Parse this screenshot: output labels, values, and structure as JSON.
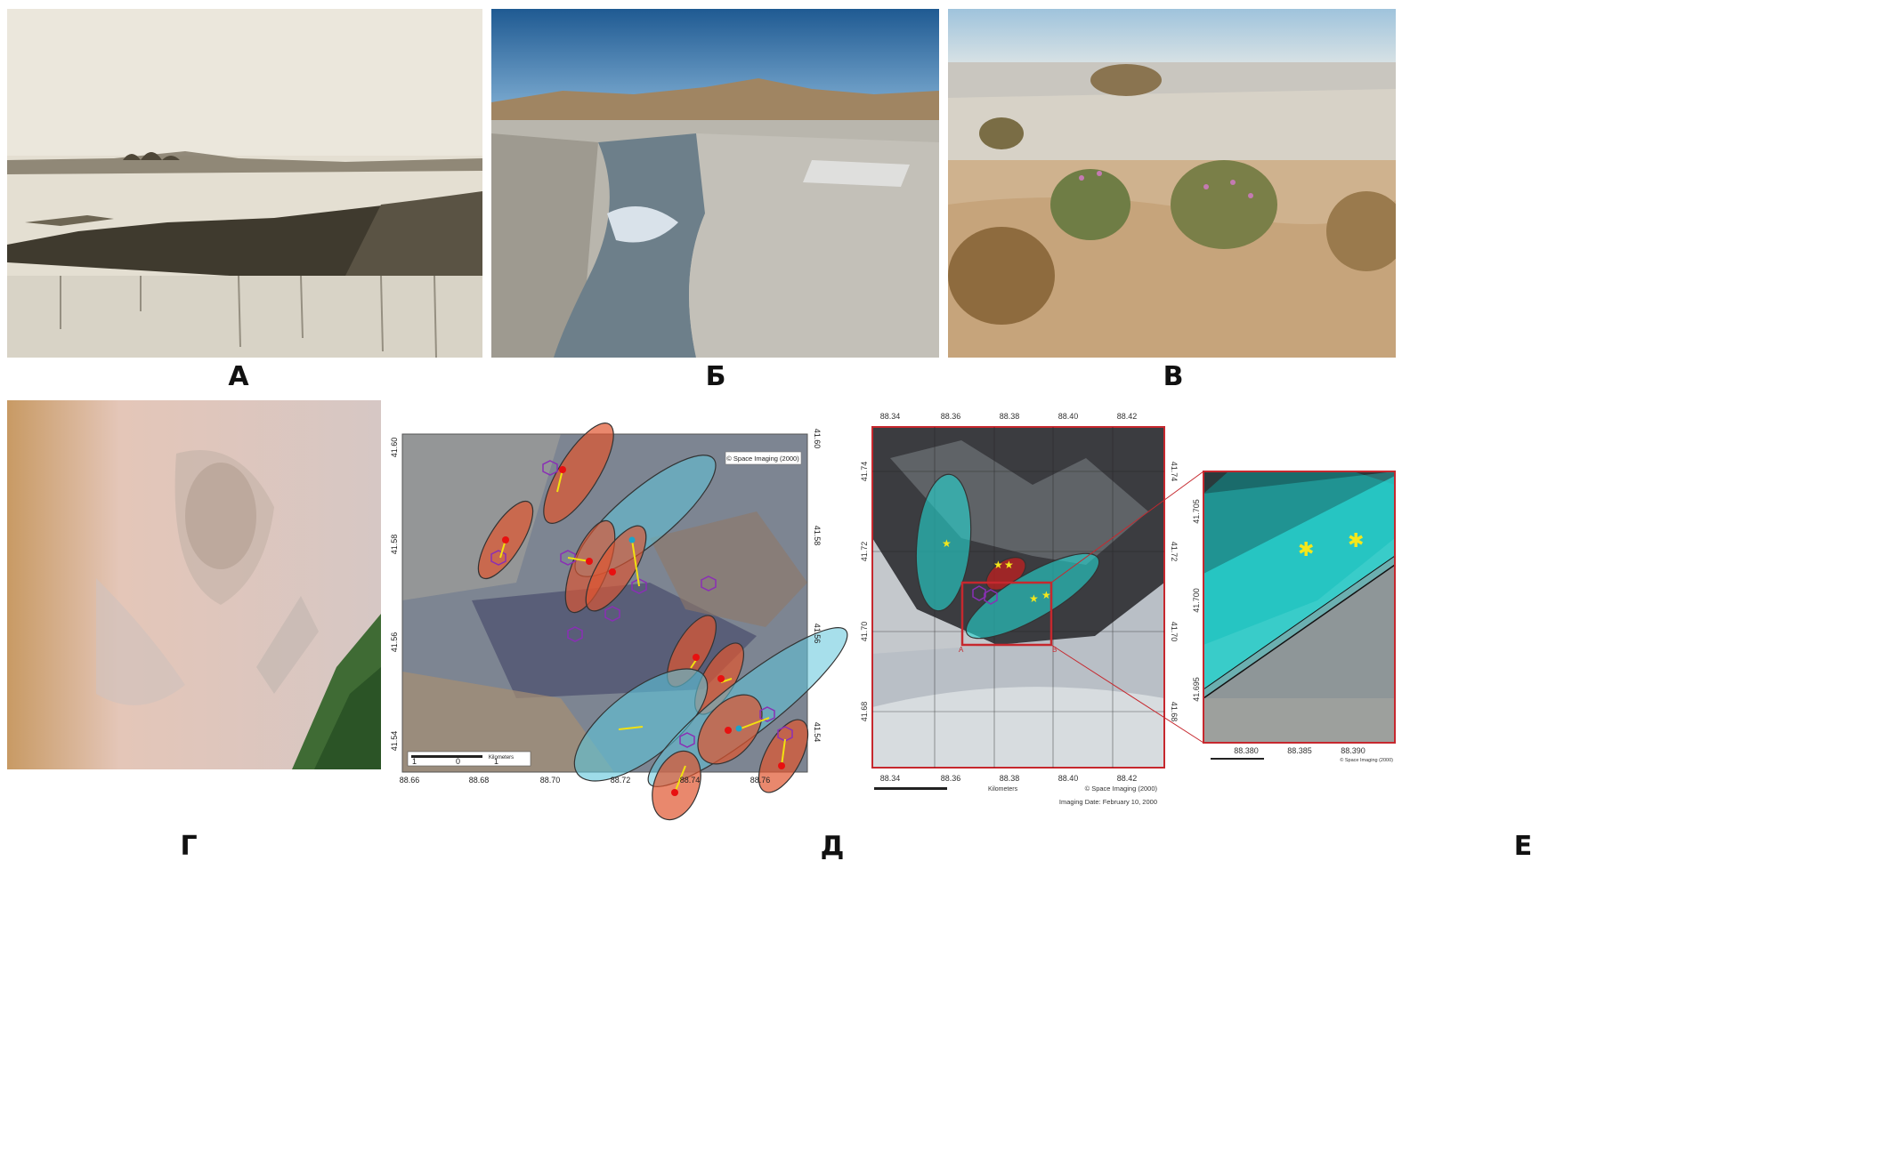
{
  "labels": {
    "a": "А",
    "b": "Б",
    "c": "В",
    "d": "Г",
    "e": "Д",
    "f": "Е"
  },
  "map_d": {
    "copyright": "© Space Imaging (2000)",
    "scale_label": "Kilometers",
    "scale_ticks": [
      "1",
      "0",
      "1"
    ],
    "x_ticks": [
      "88.66",
      "88.68",
      "88.70",
      "88.72",
      "88.74",
      "88.76"
    ],
    "y_ticks": [
      "41.60",
      "41.58",
      "41.56",
      "41.54"
    ]
  },
  "map_e": {
    "copyright": "© Space Imaging (2000)",
    "imaging_date": "Imaging Date: February 10, 2000",
    "scale_label": "Kilometers",
    "x_ticks": [
      "88.34",
      "88.36",
      "88.38",
      "88.40",
      "88.42"
    ],
    "y_ticks": [
      "41.74",
      "41.72",
      "41.70",
      "41.68"
    ],
    "inset_x_ticks": [
      "88.380",
      "88.385",
      "88.390"
    ],
    "inset_y_ticks": [
      "41.705",
      "41.700",
      "41.695"
    ],
    "inset_copyright": "© Space Imaging (2000)",
    "corner_a": "A",
    "corner_b": "B"
  },
  "colors": {
    "red_ellipse": "#e0552f",
    "blue_ellipse": "#5ec4da",
    "cyan_ellipse": "#23d7d2",
    "hexagon": "#8a2fb5"
  }
}
